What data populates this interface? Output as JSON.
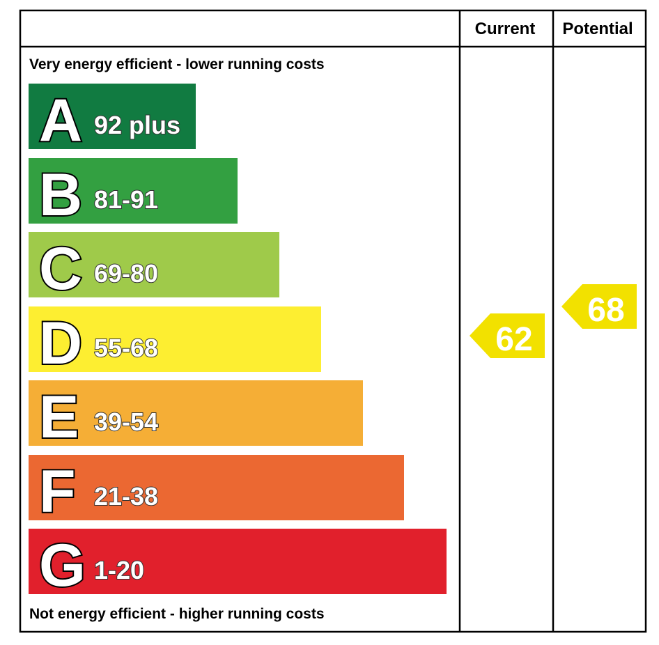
{
  "chart_data": {
    "type": "bar",
    "headers": {
      "current": "Current",
      "potential": "Potential"
    },
    "top_caption": "Very energy efficient - lower running costs",
    "bottom_caption": "Not energy efficient - higher running costs",
    "bands": [
      {
        "letter": "A",
        "range": "92 plus",
        "color": "#117b41"
      },
      {
        "letter": "B",
        "range": "81-91",
        "color": "#33a041"
      },
      {
        "letter": "C",
        "range": "69-80",
        "color": "#9fca4a"
      },
      {
        "letter": "D",
        "range": "55-68",
        "color": "#fdee31"
      },
      {
        "letter": "E",
        "range": "39-54",
        "color": "#f5ae36"
      },
      {
        "letter": "F",
        "range": "21-38",
        "color": "#eb6832"
      },
      {
        "letter": "G",
        "range": "1-20",
        "color": "#e1202c"
      }
    ],
    "current": {
      "value": 62,
      "label": "62",
      "color": "#f2e100"
    },
    "potential": {
      "value": 68,
      "label": "68",
      "color": "#f2e100"
    }
  }
}
